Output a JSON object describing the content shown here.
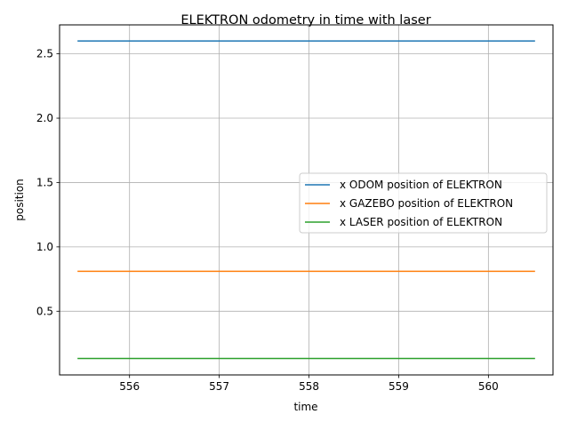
{
  "chart_data": {
    "type": "line",
    "title": "ELEKTRON odometry in time with laser",
    "xlabel": "time",
    "ylabel": "position",
    "xlim": [
      555.22,
      560.72
    ],
    "ylim": [
      0.005,
      2.725
    ],
    "xticks": [
      556,
      557,
      558,
      559,
      560
    ],
    "yticks": [
      0.5,
      1.0,
      1.5,
      2.0,
      2.5
    ],
    "ytick_labels": [
      "0.5",
      "1.0",
      "1.5",
      "2.0",
      "2.5"
    ],
    "grid": true,
    "legend_position": "center-right",
    "x": [
      555.42,
      560.52
    ],
    "series": [
      {
        "name": "x ODOM position of ELEKTRON",
        "color": "#1f77b4",
        "values": [
          2.6,
          2.6
        ]
      },
      {
        "name": "x GAZEBO position of ELEKTRON",
        "color": "#ff7f0e",
        "values": [
          0.81,
          0.81
        ]
      },
      {
        "name": "x LASER position of ELEKTRON",
        "color": "#2ca02c",
        "values": [
          0.133,
          0.133
        ]
      }
    ]
  }
}
